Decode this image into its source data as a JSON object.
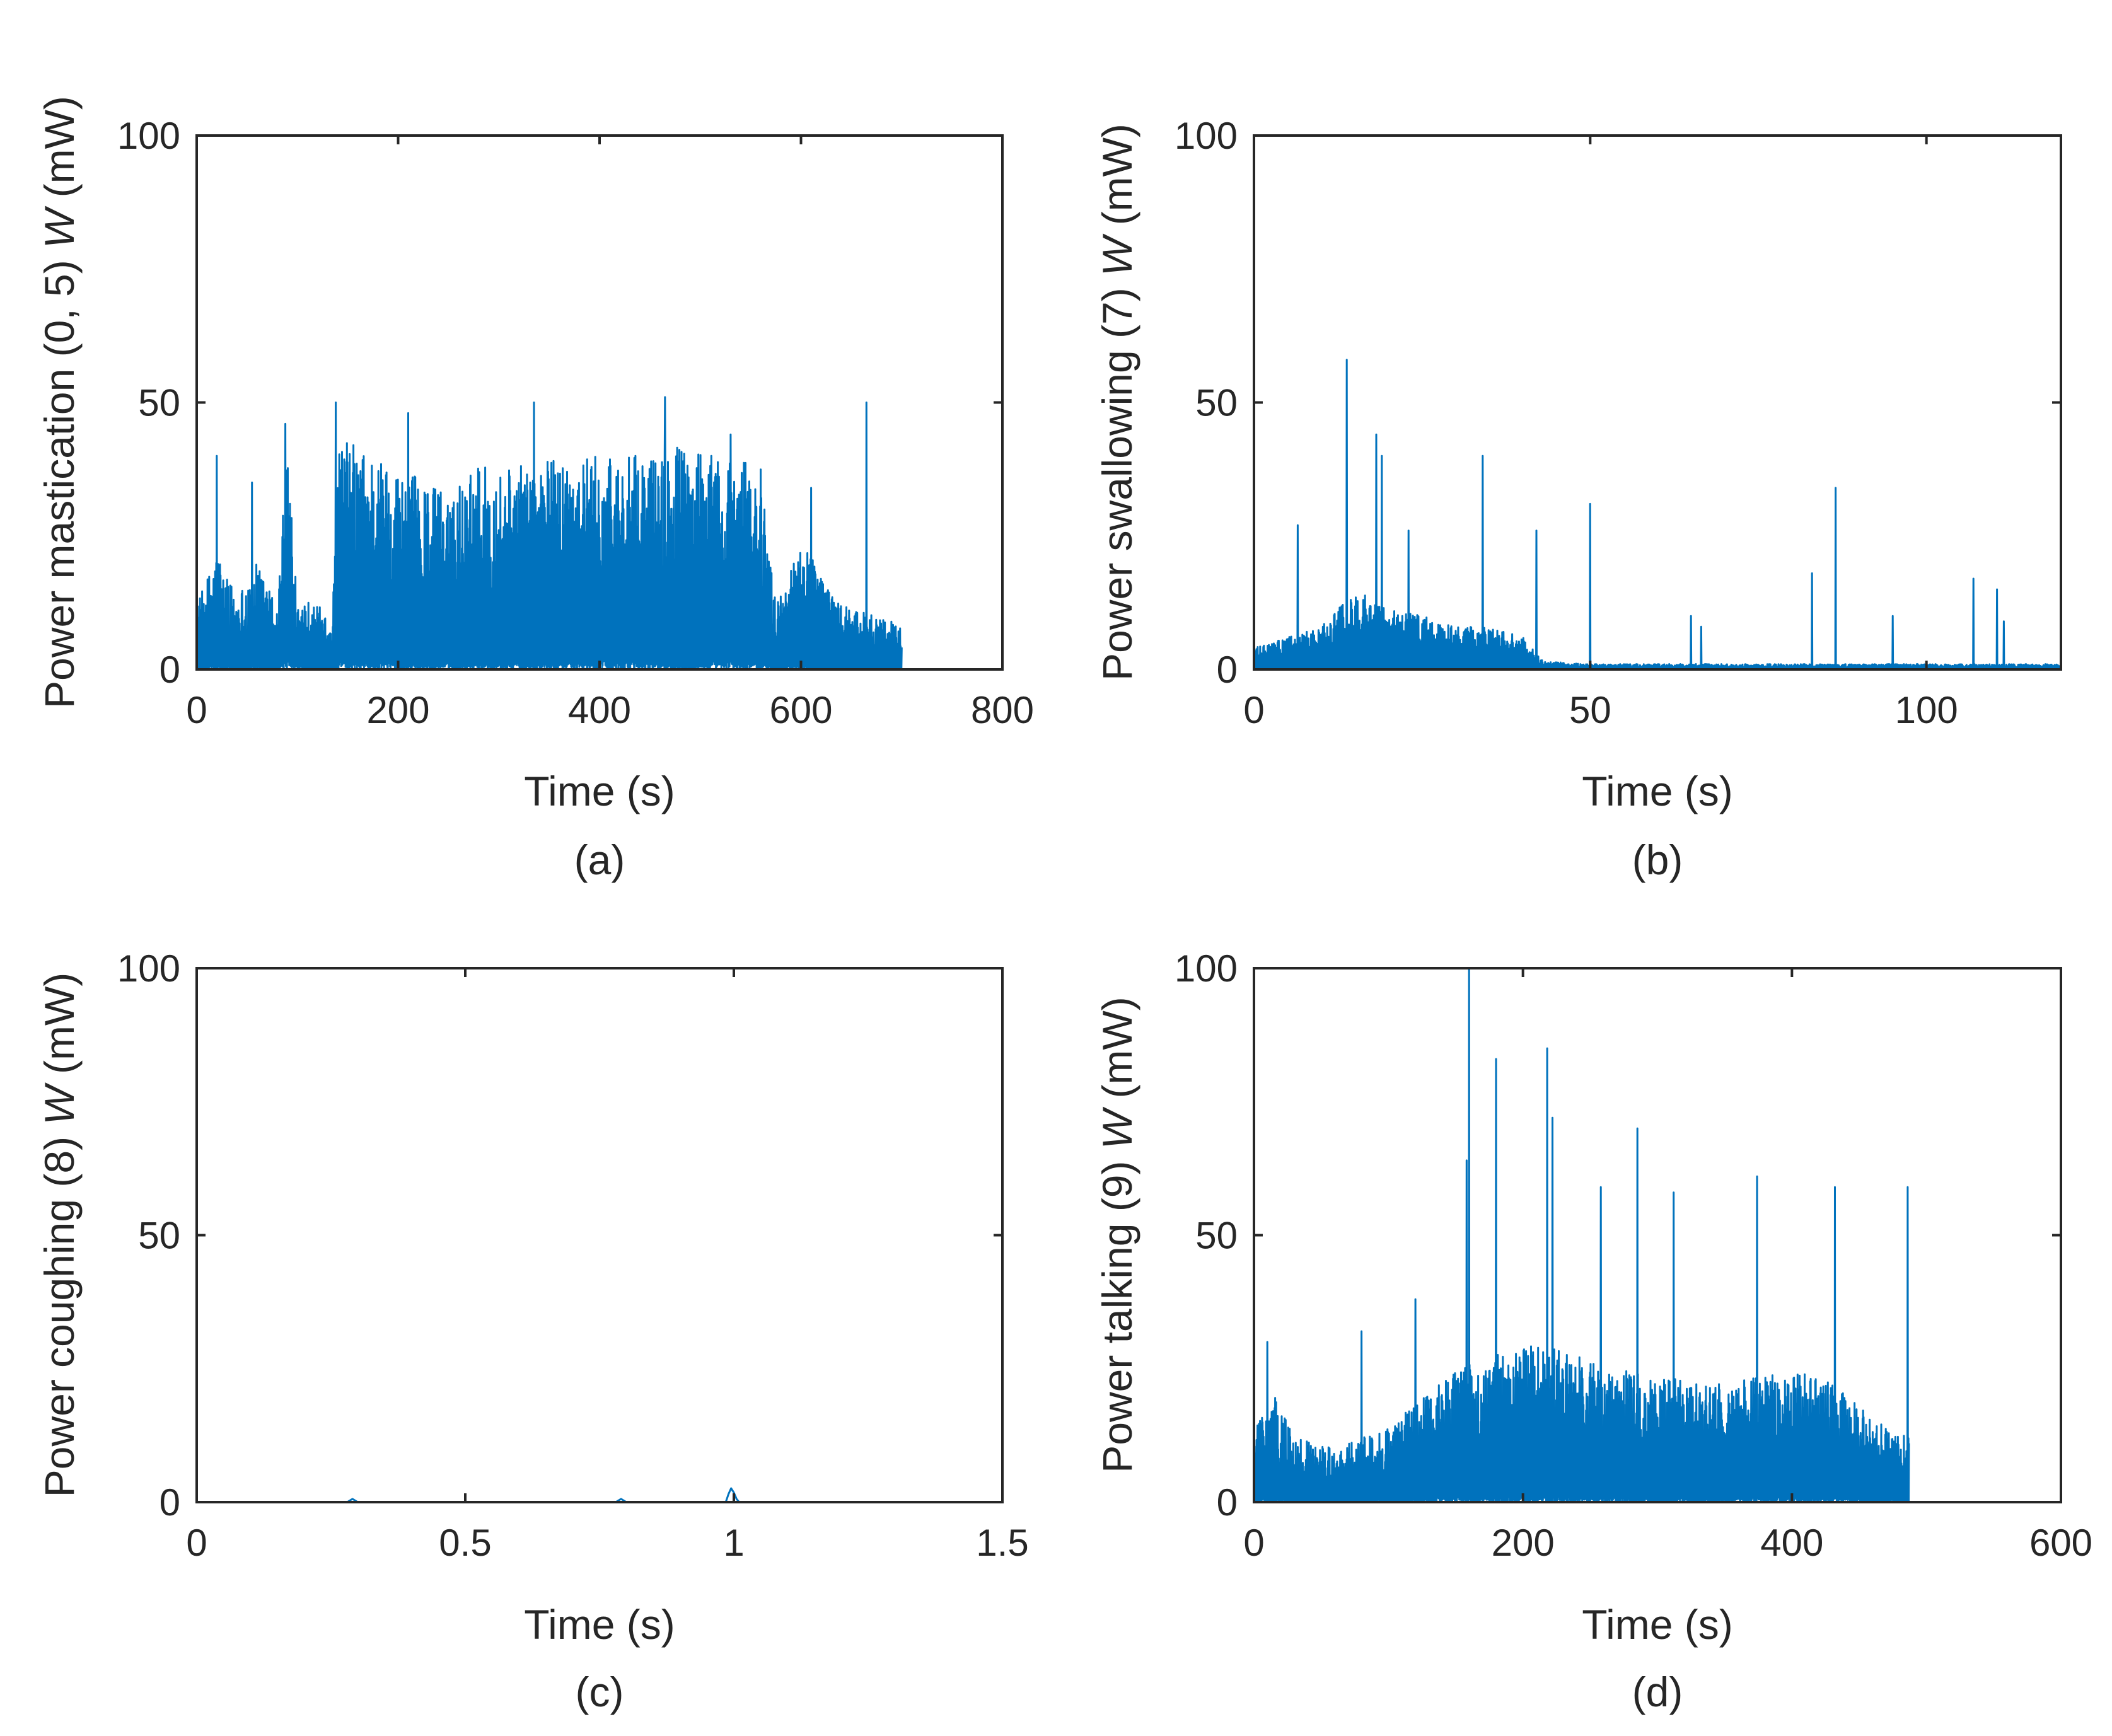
{
  "colors": {
    "series": "#0072BD",
    "axis": "#262626",
    "background": "#ffffff"
  },
  "chart_data": [
    {
      "id": "a",
      "type": "line",
      "panel_label": "(a)",
      "title": "",
      "xlabel": "Time (s)",
      "ylabel_prefix": "Power mastication (0, 5) ",
      "ylabel_var": "W",
      "ylabel_unit": " (mW)",
      "xlim": [
        0,
        800
      ],
      "ylim": [
        0,
        100
      ],
      "xticks": [
        0,
        200,
        400,
        600,
        800
      ],
      "xtick_labels": [
        "0",
        "200",
        "400",
        "600",
        "800"
      ],
      "yticks": [
        0,
        50,
        100
      ],
      "ytick_labels": [
        "0",
        "50",
        "100"
      ],
      "grid": false,
      "signal_end": 700,
      "envelope": [
        [
          0,
          12
        ],
        [
          20,
          22
        ],
        [
          40,
          14
        ],
        [
          60,
          20
        ],
        [
          80,
          12
        ],
        [
          90,
          44
        ],
        [
          100,
          14
        ],
        [
          120,
          12
        ],
        [
          135,
          10
        ],
        [
          140,
          44
        ],
        [
          160,
          42
        ],
        [
          200,
          38
        ],
        [
          240,
          34
        ],
        [
          280,
          38
        ],
        [
          320,
          38
        ],
        [
          360,
          40
        ],
        [
          400,
          40
        ],
        [
          440,
          40
        ],
        [
          480,
          42
        ],
        [
          520,
          40
        ],
        [
          560,
          38
        ],
        [
          575,
          12
        ],
        [
          600,
          24
        ],
        [
          640,
          12
        ],
        [
          680,
          10
        ],
        [
          700,
          8
        ]
      ],
      "spikes": [
        [
          20,
          40
        ],
        [
          55,
          35
        ],
        [
          88,
          46
        ],
        [
          138,
          50
        ],
        [
          210,
          48
        ],
        [
          335,
          50
        ],
        [
          465,
          51
        ],
        [
          530,
          44
        ],
        [
          610,
          34
        ],
        [
          665,
          50
        ]
      ]
    },
    {
      "id": "b",
      "type": "line",
      "panel_label": "(b)",
      "title": "",
      "xlabel": "Time (s)",
      "ylabel_prefix": "Power swallowing (7) ",
      "ylabel_var": "W",
      "ylabel_unit": " (mW)",
      "xlim": [
        0,
        120
      ],
      "ylim": [
        0,
        100
      ],
      "xticks": [
        0,
        50,
        100
      ],
      "xtick_labels": [
        "0",
        "50",
        "100"
      ],
      "yticks": [
        0,
        50,
        100
      ],
      "ytick_labels": [
        "0",
        "50",
        "100"
      ],
      "grid": false,
      "signal_end": 120,
      "envelope": [
        [
          0,
          4
        ],
        [
          10,
          8
        ],
        [
          15,
          15
        ],
        [
          20,
          12
        ],
        [
          25,
          10
        ],
        [
          30,
          8
        ],
        [
          35,
          8
        ],
        [
          40,
          6
        ],
        [
          43,
          1.5
        ],
        [
          50,
          1
        ],
        [
          60,
          1
        ],
        [
          80,
          1
        ],
        [
          100,
          1
        ],
        [
          120,
          1
        ]
      ],
      "spikes": [
        [
          6.5,
          27
        ],
        [
          13.8,
          58
        ],
        [
          18.2,
          44
        ],
        [
          19,
          40
        ],
        [
          23,
          26
        ],
        [
          34,
          40
        ],
        [
          42,
          26
        ],
        [
          50,
          31
        ],
        [
          65,
          10
        ],
        [
          66.5,
          8
        ],
        [
          83,
          18
        ],
        [
          86.5,
          34
        ],
        [
          95,
          10
        ],
        [
          107,
          17
        ],
        [
          110.5,
          15
        ],
        [
          111.5,
          9
        ]
      ]
    },
    {
      "id": "c",
      "type": "line",
      "panel_label": "(c)",
      "title": "",
      "xlabel": "Time (s)",
      "ylabel_prefix": "Power coughing (8) ",
      "ylabel_var": "W",
      "ylabel_unit": " (mW)",
      "xlim": [
        0,
        1.5
      ],
      "ylim": [
        0,
        100
      ],
      "xticks": [
        0,
        0.5,
        1,
        1.5
      ],
      "xtick_labels": [
        "0",
        "0.5",
        "1",
        "1.5"
      ],
      "yticks": [
        0,
        50,
        100
      ],
      "ytick_labels": [
        "0",
        "50",
        "100"
      ],
      "grid": false,
      "points": [
        [
          0,
          0
        ],
        [
          0.28,
          0
        ],
        [
          0.29,
          0.6
        ],
        [
          0.3,
          0
        ],
        [
          0.78,
          0
        ],
        [
          0.79,
          0.6
        ],
        [
          0.8,
          0
        ],
        [
          0.985,
          0
        ],
        [
          0.99,
          1.5
        ],
        [
          0.995,
          2.6
        ],
        [
          1.0,
          1.8
        ],
        [
          1.005,
          0.6
        ],
        [
          1.01,
          0
        ],
        [
          1.3,
          0
        ]
      ]
    },
    {
      "id": "d",
      "type": "line",
      "panel_label": "(d)",
      "title": "",
      "xlabel": "Time (s)",
      "ylabel_prefix": "Power talking (9) ",
      "ylabel_var": "W",
      "ylabel_unit": " (mW)",
      "xlim": [
        0,
        600
      ],
      "ylim": [
        0,
        100
      ],
      "xticks": [
        0,
        200,
        400,
        600
      ],
      "xtick_labels": [
        "0",
        "200",
        "400",
        "600"
      ],
      "yticks": [
        0,
        50,
        100
      ],
      "ytick_labels": [
        "0",
        "50",
        "100"
      ],
      "grid": false,
      "signal_end": 487,
      "envelope": [
        [
          0,
          14
        ],
        [
          15,
          20
        ],
        [
          30,
          12
        ],
        [
          60,
          10
        ],
        [
          100,
          14
        ],
        [
          150,
          25
        ],
        [
          180,
          28
        ],
        [
          220,
          30
        ],
        [
          260,
          25
        ],
        [
          300,
          24
        ],
        [
          340,
          22
        ],
        [
          380,
          24
        ],
        [
          420,
          24
        ],
        [
          460,
          16
        ],
        [
          487,
          12
        ]
      ],
      "spikes": [
        [
          10,
          30
        ],
        [
          80,
          32
        ],
        [
          120,
          38
        ],
        [
          158,
          64
        ],
        [
          160,
          100
        ],
        [
          180,
          83
        ],
        [
          218,
          85
        ],
        [
          222,
          72
        ],
        [
          258,
          59
        ],
        [
          285,
          70
        ],
        [
          312,
          58
        ],
        [
          374,
          61
        ],
        [
          432,
          59
        ],
        [
          486,
          59
        ]
      ]
    }
  ]
}
